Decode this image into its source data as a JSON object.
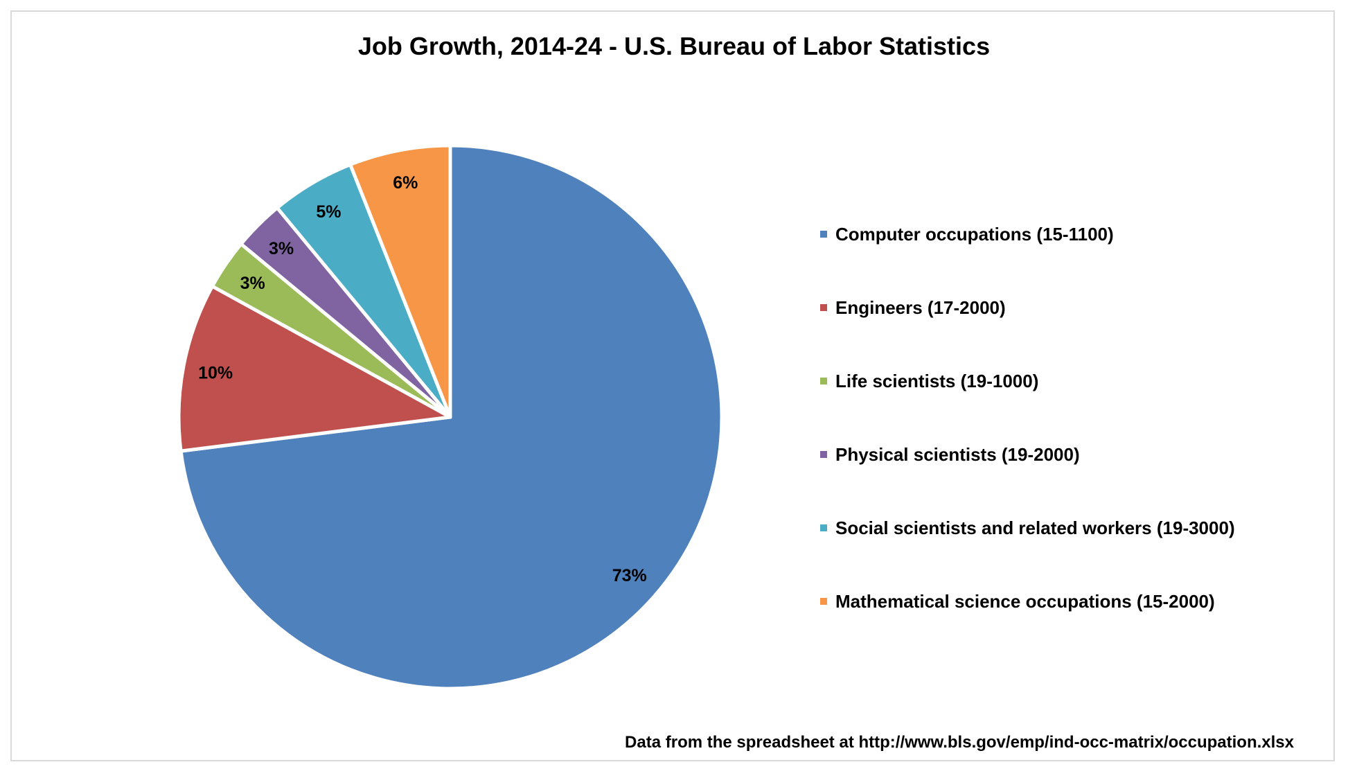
{
  "chart_data": {
    "type": "pie",
    "title": "Job Growth, 2014-24 - U.S. Bureau of Labor Statistics",
    "categories": [
      "Computer  occupations  (15-1100)",
      "Engineers (17-2000)",
      "Life scientists  (19-1000)",
      "Physical scientists  (19-2000)",
      "Social scientists  and related workers (19-3000)",
      "Mathematical science  occupations  (15-2000)"
    ],
    "values": [
      73,
      10,
      3,
      3,
      5,
      6
    ],
    "data_labels": [
      "73%",
      "10%",
      "3%",
      "3%",
      "5%",
      "6%"
    ],
    "colors": [
      "#4F81BD",
      "#C0504D",
      "#9BBB59",
      "#8064A2",
      "#4BACC6",
      "#F79646"
    ],
    "start": "top, clockwise",
    "legend_position": "right",
    "annotation": "Data from the spreadsheet at http://www.bls.gov/emp/ind-occ-matrix/occupation.xlsx"
  }
}
